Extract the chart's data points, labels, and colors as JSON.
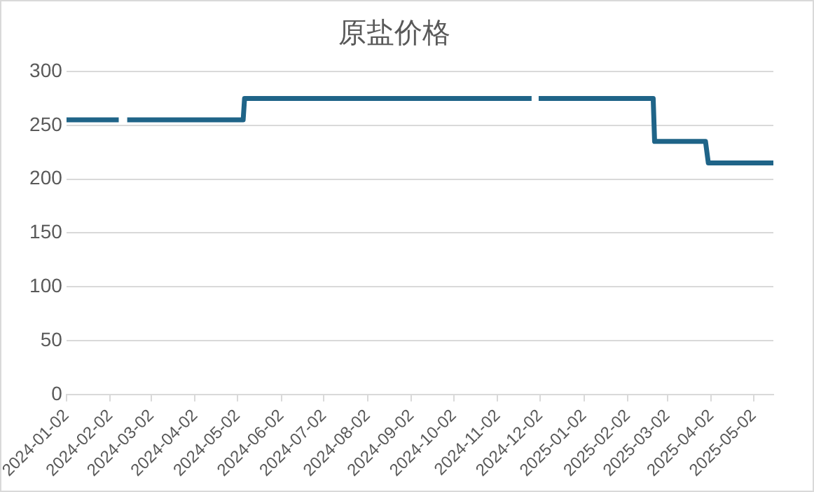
{
  "chart_data": {
    "type": "line",
    "title": "原盐价格",
    "x": [
      "2024-01-02",
      "2024-02-08",
      "2024-02-11",
      "2024-02-14",
      "2024-05-06",
      "2024-05-07",
      "2024-11-26",
      "2024-11-29",
      "2024-12-01",
      "2025-02-20",
      "2025-02-21",
      "2025-03-29",
      "2025-03-31",
      "2025-05-16"
    ],
    "series": [
      {
        "color": "#1f6488",
        "values": [
          255,
          255,
          null,
          255,
          255,
          275,
          275,
          null,
          275,
          275,
          235,
          235,
          215,
          215
        ]
      }
    ],
    "xlim": [
      "2024-01-02",
      "2025-05-16"
    ],
    "xticks": [
      "2024-01-02",
      "2024-02-02",
      "2024-03-02",
      "2024-04-02",
      "2024-05-02",
      "2024-06-02",
      "2024-07-02",
      "2024-08-02",
      "2024-09-02",
      "2024-10-02",
      "2024-11-02",
      "2024-12-02",
      "2025-01-02",
      "2025-02-02",
      "2025-03-02",
      "2025-04-02",
      "2025-05-02"
    ],
    "ylim": [
      0,
      300
    ],
    "yticks": [
      0,
      50,
      100,
      150,
      200,
      250,
      300
    ],
    "grid": "y",
    "legend": false,
    "marker": "none",
    "line_style": "solid"
  }
}
